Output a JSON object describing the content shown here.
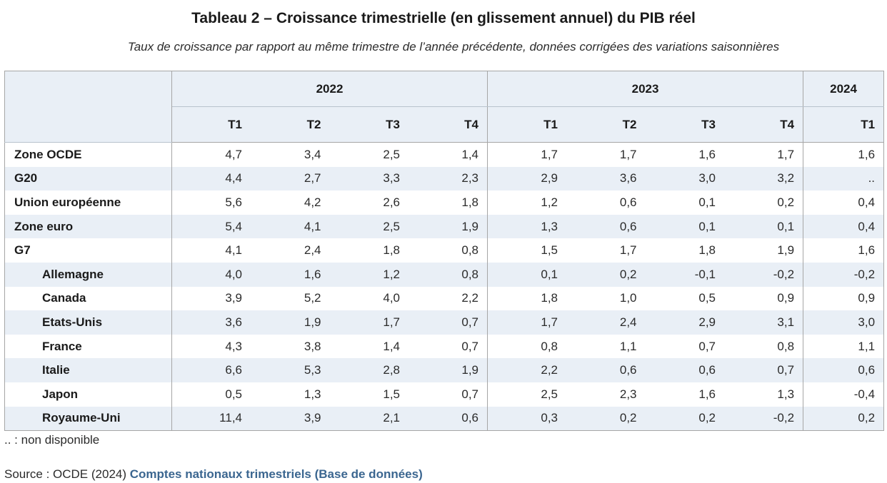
{
  "title": "Tableau 2 – Croissance trimestrielle (en glissement annuel) du PIB réel",
  "subtitle": "Taux de croissance par rapport au même trimestre de l’année précédente, données corrigées des variations saisonnières",
  "table": {
    "years": [
      {
        "label": "2022"
      },
      {
        "label": "2023"
      },
      {
        "label": "2024"
      }
    ],
    "quarters": [
      "T1",
      "T2",
      "T3",
      "T4",
      "T1",
      "T2",
      "T3",
      "T4",
      "T1"
    ],
    "rows": [
      {
        "label": "Zone OCDE",
        "values": [
          "4,7",
          "3,4",
          "2,5",
          "1,4",
          "1,7",
          "1,7",
          "1,6",
          "1,7",
          "1,6"
        ]
      },
      {
        "label": "G20",
        "values": [
          "4,4",
          "2,7",
          "3,3",
          "2,3",
          "2,9",
          "3,6",
          "3,0",
          "3,2",
          ".."
        ]
      },
      {
        "label": "Union européenne",
        "values": [
          "5,6",
          "4,2",
          "2,6",
          "1,8",
          "1,2",
          "0,6",
          "0,1",
          "0,2",
          "0,4"
        ]
      },
      {
        "label": "Zone euro",
        "values": [
          "5,4",
          "4,1",
          "2,5",
          "1,9",
          "1,3",
          "0,6",
          "0,1",
          "0,1",
          "0,4"
        ]
      },
      {
        "label": "G7",
        "values": [
          "4,1",
          "2,4",
          "1,8",
          "0,8",
          "1,5",
          "1,7",
          "1,8",
          "1,9",
          "1,6"
        ]
      },
      {
        "label": "Allemagne",
        "values": [
          "4,0",
          "1,6",
          "1,2",
          "0,8",
          "0,1",
          "0,2",
          "-0,1",
          "-0,2",
          "-0,2"
        ]
      },
      {
        "label": "Canada",
        "values": [
          "3,9",
          "5,2",
          "4,0",
          "2,2",
          "1,8",
          "1,0",
          "0,5",
          "0,9",
          "0,9"
        ]
      },
      {
        "label": "Etats-Unis",
        "values": [
          "3,6",
          "1,9",
          "1,7",
          "0,7",
          "1,7",
          "2,4",
          "2,9",
          "3,1",
          "3,0"
        ]
      },
      {
        "label": "France",
        "values": [
          "4,3",
          "3,8",
          "1,4",
          "0,7",
          "0,8",
          "1,1",
          "0,7",
          "0,8",
          "1,1"
        ]
      },
      {
        "label": "Italie",
        "values": [
          "6,6",
          "5,3",
          "2,8",
          "1,9",
          "2,2",
          "0,6",
          "0,6",
          "0,7",
          "0,6"
        ]
      },
      {
        "label": "Japon",
        "values": [
          "0,5",
          "1,3",
          "1,5",
          "0,7",
          "2,5",
          "2,3",
          "1,6",
          "1,3",
          "-0,4"
        ]
      },
      {
        "label": "Royaume-Uni",
        "values": [
          "11,4",
          "3,9",
          "2,1",
          "0,6",
          "0,3",
          "0,2",
          "0,2",
          "-0,2",
          "0,2"
        ]
      }
    ]
  },
  "footnote": ".. : non disponible",
  "source": {
    "prefix": "Source : OCDE (2024) ",
    "link_text": "Comptes nationaux trimestriels (Base de données)"
  },
  "colors": {
    "header_bg": "#e9eff6",
    "shaded_row_bg": "#e9eff6",
    "link": "#3b6690",
    "border": "#a6a6a6"
  }
}
